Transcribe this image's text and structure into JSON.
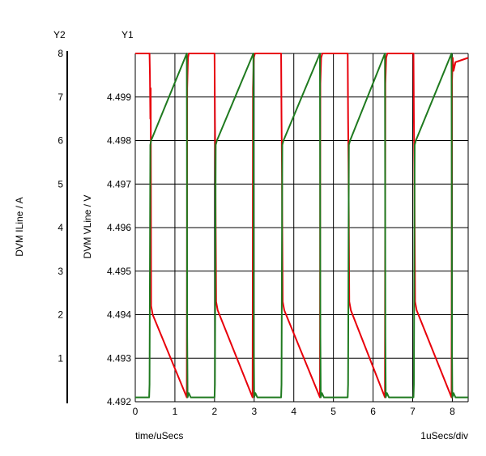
{
  "chart_data": {
    "type": "line",
    "xlabel": "time/uSecs",
    "x_scale_label": "1uSecs/div",
    "y1_axis_label": "Y1",
    "y2_axis_label": "Y2",
    "y1_title": "DVM VLine / V",
    "y2_title": "DVM ILine / A",
    "xlim": [
      0,
      8.4
    ],
    "y1lim": [
      4.492,
      4.5
    ],
    "y2lim": [
      0,
      8
    ],
    "x_ticks": [
      "0",
      "1",
      "2",
      "3",
      "4",
      "5",
      "6",
      "7",
      "8"
    ],
    "y1_ticks": [
      "4.492",
      "4.493",
      "4.494",
      "4.495",
      "4.496",
      "4.497",
      "4.498",
      "4.499"
    ],
    "y2_ticks": [
      "1",
      "2",
      "3",
      "4",
      "5",
      "6",
      "7",
      "8"
    ],
    "grid": true,
    "series": [
      {
        "color": "#e8000b",
        "axis": "y1",
        "x": [
          0,
          0.36,
          0.37,
          0.38,
          0.39,
          0.4,
          0.42,
          0.44,
          1.3,
          1.31,
          1.33,
          1.35,
          1.38,
          2.0,
          2.01,
          2.02,
          2.04,
          2.06,
          2.08,
          2.96,
          2.97,
          2.99,
          3.02,
          3.68,
          3.69,
          3.7,
          3.72,
          3.74,
          3.76,
          4.66,
          4.67,
          4.69,
          4.72,
          5.36,
          5.37,
          5.38,
          5.4,
          5.42,
          5.44,
          6.3,
          6.31,
          6.33,
          6.36,
          7.02,
          7.03,
          7.04,
          7.06,
          7.08,
          7.1,
          7.98,
          7.99,
          8.01,
          8.03,
          8.08,
          8.4
        ],
        "y": [
          4.5,
          4.5,
          4.4995,
          4.4985,
          4.4992,
          4.4942,
          4.4941,
          4.494,
          4.4921,
          4.4992,
          4.4999,
          4.5,
          4.5,
          4.5,
          4.4985,
          4.4975,
          4.4943,
          4.4942,
          4.4941,
          4.4921,
          4.4992,
          4.4999,
          4.5,
          4.5,
          4.4985,
          4.4975,
          4.4943,
          4.4942,
          4.4941,
          4.4921,
          4.4993,
          4.4999,
          4.5,
          4.5,
          4.4985,
          4.4975,
          4.4943,
          4.4942,
          4.4941,
          4.4921,
          4.4993,
          4.4999,
          4.5,
          4.5,
          4.4985,
          4.4975,
          4.4943,
          4.4942,
          4.4941,
          4.4921,
          4.4993,
          4.4999,
          4.4996,
          4.4998,
          4.4999
        ]
      },
      {
        "color": "#1f7a1f",
        "axis": "y1",
        "x": [
          0,
          0.35,
          0.36,
          0.38,
          0.4,
          1.3,
          1.31,
          1.32,
          1.35,
          1.4,
          2.0,
          2.01,
          2.03,
          2.06,
          2.98,
          2.99,
          3.0,
          3.03,
          3.08,
          3.68,
          3.69,
          3.71,
          3.74,
          4.66,
          4.67,
          4.68,
          4.71,
          4.76,
          5.36,
          5.37,
          5.39,
          5.42,
          6.3,
          6.31,
          6.32,
          6.35,
          6.4,
          7.02,
          7.03,
          7.05,
          7.08,
          7.98,
          7.99,
          8.0,
          8.03,
          8.08,
          8.4
        ],
        "y": [
          4.4921,
          4.4921,
          4.4924,
          4.4979,
          4.498,
          4.5,
          4.4935,
          4.4921,
          4.4922,
          4.4921,
          4.4921,
          4.4924,
          4.4979,
          4.498,
          4.5,
          4.4935,
          4.4921,
          4.4922,
          4.4921,
          4.4921,
          4.4924,
          4.4979,
          4.498,
          4.5,
          4.4935,
          4.4921,
          4.4922,
          4.4921,
          4.4921,
          4.4924,
          4.4979,
          4.498,
          4.5,
          4.4935,
          4.4921,
          4.4922,
          4.4921,
          4.4921,
          4.4924,
          4.4979,
          4.498,
          4.5,
          4.4935,
          4.4921,
          4.4922,
          4.4921,
          4.4921
        ]
      }
    ]
  }
}
